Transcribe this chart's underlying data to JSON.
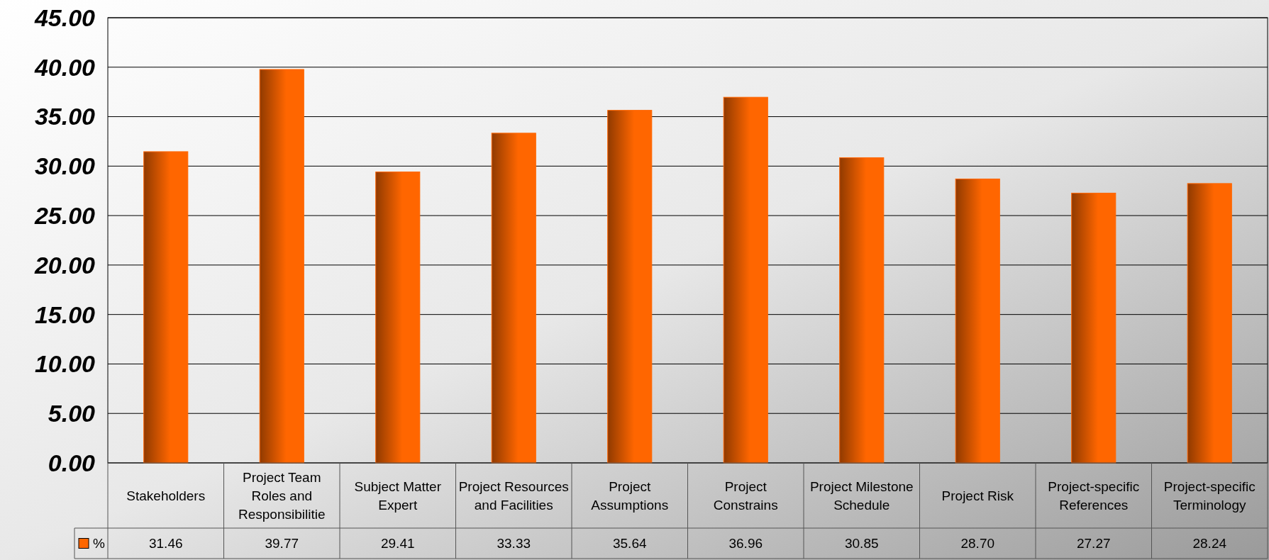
{
  "chart_data": {
    "type": "bar",
    "categories": [
      "Stakeholders",
      "Project Team Roles and Responsibilitie",
      "Subject Matter Expert",
      "Project Resources and Facilities",
      "Project Assumptions",
      "Project Constrains",
      "Project Milestone Schedule",
      "Project Risk",
      "Project-specific References",
      "Project-specific Terminology"
    ],
    "series": [
      {
        "name": "%",
        "color": "#ff6600",
        "values": [
          31.46,
          39.77,
          29.41,
          33.33,
          35.64,
          36.96,
          30.85,
          28.7,
          27.27,
          28.24
        ],
        "value_labels": [
          "31.46",
          "39.77",
          "29.41",
          "33.33",
          "35.64",
          "36.96",
          "30.85",
          "28.70",
          "27.27",
          "28.24"
        ]
      }
    ],
    "ylim": [
      0,
      45
    ],
    "yticks": [
      {
        "value": 0,
        "label": "0.00"
      },
      {
        "value": 5,
        "label": "5.00"
      },
      {
        "value": 10,
        "label": "10.00"
      },
      {
        "value": 15,
        "label": "15.00"
      },
      {
        "value": 20,
        "label": "20.00"
      },
      {
        "value": 25,
        "label": "25.00"
      },
      {
        "value": 30,
        "label": "30.00"
      },
      {
        "value": 35,
        "label": "35.00"
      },
      {
        "value": 40,
        "label": "40.00"
      },
      {
        "value": 45,
        "label": "45.00"
      }
    ],
    "grid": "y",
    "legend": "bottom left"
  }
}
